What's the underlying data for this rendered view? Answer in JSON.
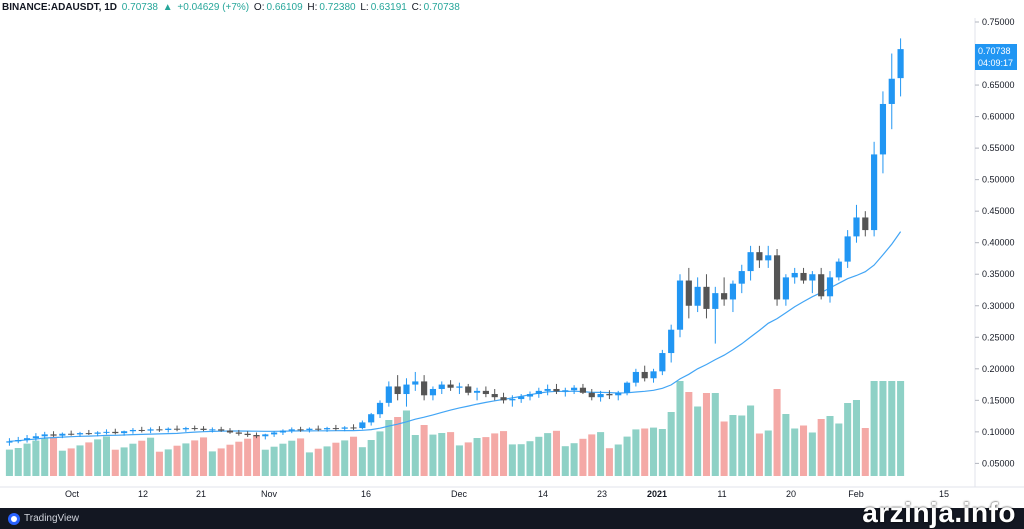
{
  "header": {
    "symbol": "BINANCE:ADAUSDT, 1D",
    "last": "0.70738",
    "change": "+0.04629 (+7%)",
    "o_label": "O:",
    "o_value": "0.66109",
    "h_label": "H:",
    "h_value": "0.72380",
    "l_label": "L:",
    "l_value": "0.63191",
    "c_label": "C:",
    "c_value": "0.70738"
  },
  "price_tag": {
    "price": "0.70738",
    "countdown": "04:09:17"
  },
  "footer": {
    "brand": "TradingView"
  },
  "watermark": "arzinja.info",
  "colors": {
    "up": "#26a69a",
    "down": "#ef5350",
    "candle_up": "#2196f3",
    "candle_down": "#555555",
    "ma": "#42a5f5",
    "vol_up": "#8ed1c6",
    "vol_down": "#f4a9a6"
  },
  "chart_data": {
    "type": "candlestick",
    "title": "",
    "y_axis_ticks": [
      "0.75000",
      "0.70000",
      "0.65000",
      "0.60000",
      "0.55000",
      "0.50000",
      "0.45000",
      "0.40000",
      "0.35000",
      "0.30000",
      "0.25000",
      "0.20000",
      "0.15000",
      "0.10000",
      "0.05000"
    ],
    "ylim": [
      0.03,
      0.75
    ],
    "x_axis_ticks": [
      "Oct",
      "12",
      "21",
      "Nov",
      "16",
      "Dec",
      "14",
      "23",
      "2021",
      "11",
      "20",
      "Feb",
      "15"
    ],
    "grid": false,
    "series": [
      {
        "name": "price",
        "values": [
          [
            0.083,
            0.09,
            0.078,
            0.085
          ],
          [
            0.085,
            0.092,
            0.082,
            0.087
          ],
          [
            0.087,
            0.095,
            0.083,
            0.09
          ],
          [
            0.09,
            0.098,
            0.086,
            0.093
          ],
          [
            0.093,
            0.1,
            0.089,
            0.096
          ],
          [
            0.096,
            0.101,
            0.092,
            0.094
          ],
          [
            0.094,
            0.099,
            0.09,
            0.097
          ],
          [
            0.097,
            0.102,
            0.094,
            0.096
          ],
          [
            0.096,
            0.1,
            0.092,
            0.098
          ],
          [
            0.098,
            0.103,
            0.095,
            0.097
          ],
          [
            0.097,
            0.101,
            0.093,
            0.099
          ],
          [
            0.099,
            0.104,
            0.096,
            0.1
          ],
          [
            0.1,
            0.105,
            0.096,
            0.098
          ],
          [
            0.098,
            0.102,
            0.094,
            0.101
          ],
          [
            0.101,
            0.106,
            0.097,
            0.103
          ],
          [
            0.103,
            0.108,
            0.099,
            0.102
          ],
          [
            0.102,
            0.107,
            0.098,
            0.104
          ],
          [
            0.104,
            0.109,
            0.1,
            0.103
          ],
          [
            0.103,
            0.107,
            0.099,
            0.105
          ],
          [
            0.105,
            0.11,
            0.101,
            0.104
          ],
          [
            0.104,
            0.108,
            0.1,
            0.106
          ],
          [
            0.106,
            0.11,
            0.102,
            0.105
          ],
          [
            0.105,
            0.109,
            0.101,
            0.103
          ],
          [
            0.103,
            0.107,
            0.099,
            0.104
          ],
          [
            0.104,
            0.108,
            0.1,
            0.102
          ],
          [
            0.102,
            0.106,
            0.097,
            0.099
          ],
          [
            0.099,
            0.103,
            0.094,
            0.097
          ],
          [
            0.097,
            0.101,
            0.092,
            0.095
          ],
          [
            0.095,
            0.099,
            0.09,
            0.093
          ],
          [
            0.093,
            0.097,
            0.088,
            0.096
          ],
          [
            0.096,
            0.101,
            0.092,
            0.099
          ],
          [
            0.099,
            0.104,
            0.095,
            0.102
          ],
          [
            0.102,
            0.107,
            0.098,
            0.104
          ],
          [
            0.104,
            0.108,
            0.1,
            0.103
          ],
          [
            0.103,
            0.107,
            0.099,
            0.105
          ],
          [
            0.105,
            0.11,
            0.101,
            0.104
          ],
          [
            0.104,
            0.108,
            0.1,
            0.106
          ],
          [
            0.106,
            0.111,
            0.102,
            0.105
          ],
          [
            0.105,
            0.109,
            0.101,
            0.107
          ],
          [
            0.107,
            0.112,
            0.103,
            0.106
          ],
          [
            0.106,
            0.118,
            0.104,
            0.115
          ],
          [
            0.115,
            0.13,
            0.11,
            0.128
          ],
          [
            0.128,
            0.15,
            0.122,
            0.146
          ],
          [
            0.146,
            0.18,
            0.14,
            0.172
          ],
          [
            0.172,
            0.19,
            0.15,
            0.16
          ],
          [
            0.16,
            0.185,
            0.14,
            0.175
          ],
          [
            0.175,
            0.195,
            0.165,
            0.18
          ],
          [
            0.18,
            0.19,
            0.15,
            0.158
          ],
          [
            0.158,
            0.172,
            0.15,
            0.168
          ],
          [
            0.168,
            0.18,
            0.16,
            0.175
          ],
          [
            0.175,
            0.182,
            0.165,
            0.17
          ],
          [
            0.17,
            0.178,
            0.16,
            0.172
          ],
          [
            0.172,
            0.176,
            0.158,
            0.162
          ],
          [
            0.162,
            0.17,
            0.15,
            0.165
          ],
          [
            0.165,
            0.172,
            0.155,
            0.16
          ],
          [
            0.16,
            0.168,
            0.15,
            0.155
          ],
          [
            0.155,
            0.162,
            0.145,
            0.15
          ],
          [
            0.15,
            0.158,
            0.14,
            0.152
          ],
          [
            0.152,
            0.16,
            0.146,
            0.156
          ],
          [
            0.156,
            0.164,
            0.15,
            0.16
          ],
          [
            0.16,
            0.17,
            0.154,
            0.165
          ],
          [
            0.165,
            0.175,
            0.158,
            0.168
          ],
          [
            0.168,
            0.176,
            0.16,
            0.164
          ],
          [
            0.164,
            0.17,
            0.156,
            0.166
          ],
          [
            0.166,
            0.174,
            0.16,
            0.17
          ],
          [
            0.17,
            0.176,
            0.16,
            0.162
          ],
          [
            0.162,
            0.168,
            0.15,
            0.155
          ],
          [
            0.155,
            0.165,
            0.148,
            0.16
          ],
          [
            0.16,
            0.166,
            0.152,
            0.158
          ],
          [
            0.158,
            0.165,
            0.15,
            0.162
          ],
          [
            0.162,
            0.18,
            0.158,
            0.178
          ],
          [
            0.178,
            0.2,
            0.172,
            0.195
          ],
          [
            0.195,
            0.205,
            0.18,
            0.185
          ],
          [
            0.185,
            0.2,
            0.178,
            0.196
          ],
          [
            0.196,
            0.23,
            0.19,
            0.225
          ],
          [
            0.225,
            0.27,
            0.21,
            0.262
          ],
          [
            0.262,
            0.35,
            0.25,
            0.34
          ],
          [
            0.34,
            0.36,
            0.28,
            0.3
          ],
          [
            0.3,
            0.345,
            0.29,
            0.33
          ],
          [
            0.33,
            0.35,
            0.28,
            0.295
          ],
          [
            0.295,
            0.33,
            0.24,
            0.32
          ],
          [
            0.32,
            0.345,
            0.3,
            0.31
          ],
          [
            0.31,
            0.34,
            0.29,
            0.335
          ],
          [
            0.335,
            0.365,
            0.32,
            0.355
          ],
          [
            0.355,
            0.395,
            0.34,
            0.385
          ],
          [
            0.385,
            0.395,
            0.36,
            0.372
          ],
          [
            0.372,
            0.395,
            0.36,
            0.38
          ],
          [
            0.38,
            0.39,
            0.3,
            0.31
          ],
          [
            0.31,
            0.35,
            0.3,
            0.345
          ],
          [
            0.345,
            0.36,
            0.335,
            0.352
          ],
          [
            0.352,
            0.36,
            0.335,
            0.34
          ],
          [
            0.34,
            0.355,
            0.32,
            0.35
          ],
          [
            0.35,
            0.36,
            0.31,
            0.315
          ],
          [
            0.315,
            0.355,
            0.305,
            0.345
          ],
          [
            0.345,
            0.375,
            0.34,
            0.37
          ],
          [
            0.37,
            0.42,
            0.36,
            0.41
          ],
          [
            0.41,
            0.46,
            0.4,
            0.44
          ],
          [
            0.44,
            0.45,
            0.41,
            0.42
          ],
          [
            0.42,
            0.56,
            0.41,
            0.54
          ],
          [
            0.54,
            0.64,
            0.51,
            0.62
          ],
          [
            0.62,
            0.7,
            0.58,
            0.66
          ],
          [
            0.661,
            0.724,
            0.632,
            0.707
          ]
        ]
      }
    ]
  }
}
